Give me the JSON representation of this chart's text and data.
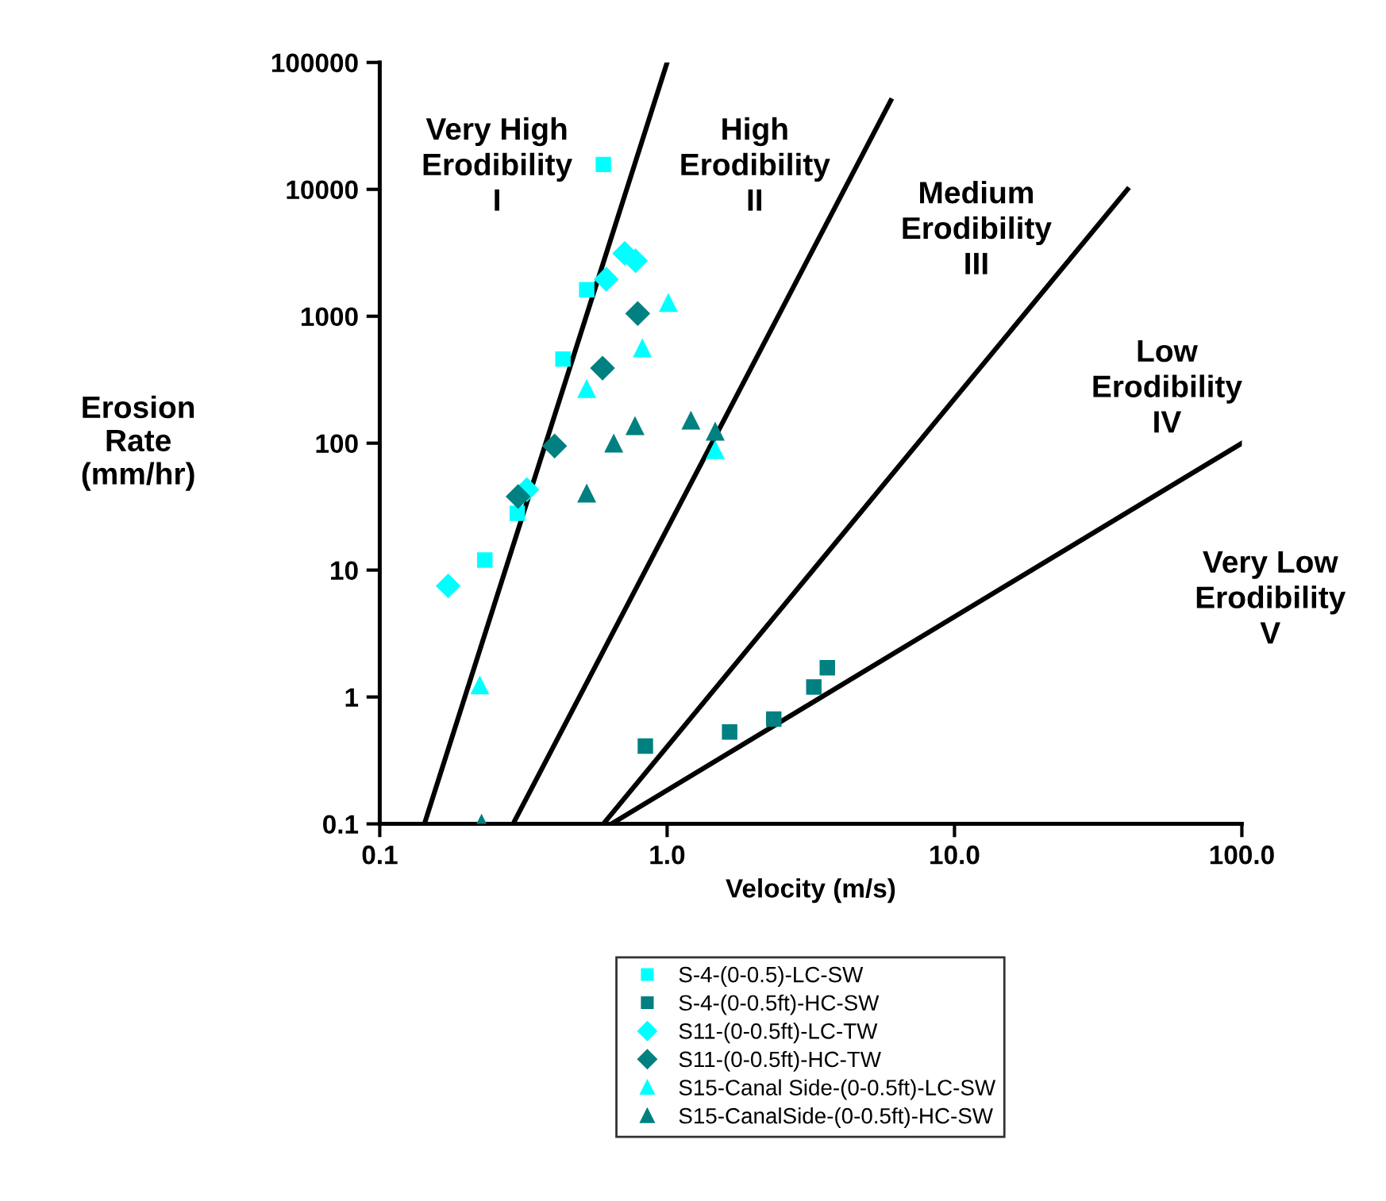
{
  "chart_data": {
    "type": "scatter",
    "xlabel": "Velocity (m/s)",
    "ylabel": "Erosion\nRate\n(mm/hr)",
    "log": "xy",
    "xlim": [
      0.1,
      100
    ],
    "ylim": [
      0.1,
      100000
    ],
    "xticks": [
      0.1,
      {
        "value": 1,
        "label": "1.0"
      },
      {
        "value": 10,
        "label": "10.0"
      },
      {
        "value": 100,
        "label": "100.0"
      }
    ],
    "yticks": [
      0.1,
      1,
      10,
      100,
      1000,
      10000,
      100000
    ],
    "grid": false,
    "legend": "bottom",
    "annotations": [
      "Very High\nErodibility\nI",
      "High\nErodibility\nII",
      "Medium\nErodibility\nIII",
      "Low\nErodibility\nIV",
      "Very Low\nErodibility\nV"
    ],
    "series": [
      {
        "type": "line",
        "color": "#000000",
        "x": [
          0.143,
          1.0
        ],
        "values": [
          0.1,
          100000
        ]
      },
      {
        "type": "line",
        "color": "#000000",
        "x": [
          0.291,
          6.0
        ],
        "values": [
          0.1,
          50000
        ]
      },
      {
        "type": "line",
        "color": "#000000",
        "x": [
          0.6,
          40
        ],
        "values": [
          0.1,
          10000
        ]
      },
      {
        "type": "line",
        "color": "#000000",
        "x": [
          0.64,
          100
        ],
        "values": [
          0.1,
          100
        ]
      },
      {
        "name": "S-4-(0-0.5)-LC-SW",
        "marker": "square",
        "color": "#00ffff",
        "x": [
          0.6,
          0.525,
          0.434,
          0.301,
          0.232
        ],
        "values": [
          15700,
          1620,
          460,
          28,
          12
        ]
      },
      {
        "name": "S-4-(0-0.5ft)-HC-SW",
        "marker": "square",
        "color": "#008080",
        "x": [
          0.84,
          1.65,
          2.35,
          3.24,
          3.61
        ],
        "values": [
          0.41,
          0.53,
          0.67,
          1.2,
          1.7
        ]
      },
      {
        "name": "S11-(0-0.5ft)-LC-TW",
        "marker": "diamond",
        "color": "#00ffff",
        "x": [
          0.712,
          0.776,
          0.614,
          0.325,
          0.173
        ],
        "values": [
          3130,
          2740,
          1960,
          43,
          7.5
        ]
      },
      {
        "name": "S11-(0-0.5ft)-HC-TW",
        "marker": "diamond",
        "color": "#008080",
        "x": [
          0.79,
          0.596,
          0.406,
          0.303
        ],
        "values": [
          1050,
          390,
          95,
          38
        ]
      },
      {
        "name": "S15-Canal Side-(0-0.5ft)-LC-SW",
        "marker": "triangle",
        "color": "#00ffff",
        "x": [
          1.01,
          0.82,
          0.525,
          1.47,
          0.223
        ],
        "values": [
          1270,
          557,
          266,
          88,
          1.23
        ]
      },
      {
        "name": "S15-CanalSide-(0-0.5ft)-HC-SW",
        "marker": "triangle",
        "color": "#008080",
        "x": [
          0.652,
          0.773,
          1.21,
          1.47,
          0.525,
          0.226
        ],
        "values": [
          99,
          136,
          150,
          123,
          40,
          0.1
        ]
      }
    ]
  }
}
